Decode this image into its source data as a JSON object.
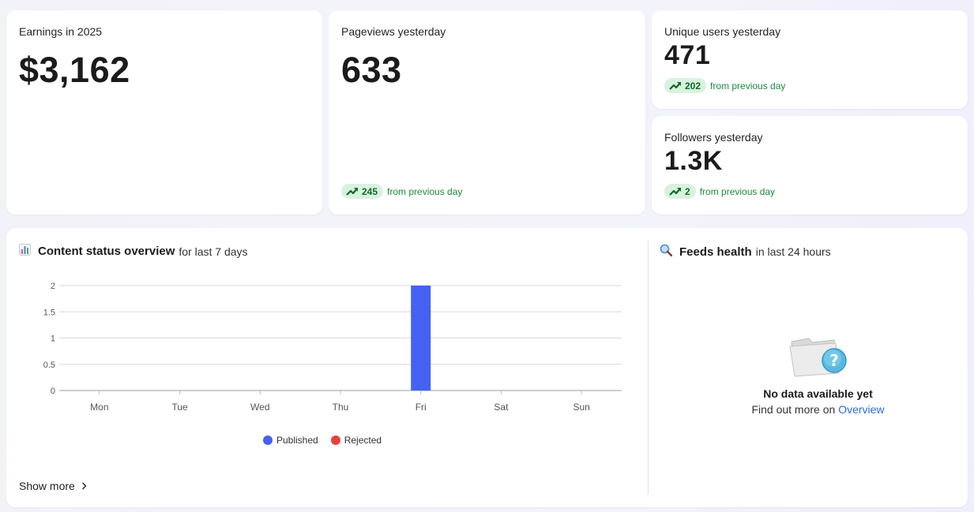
{
  "kpis": {
    "earnings": {
      "label": "Earnings in 2025",
      "value": "$3,162"
    },
    "pageviews": {
      "label": "Pageviews yesterday",
      "value": "633",
      "delta": "245",
      "delta_text": "from previous day"
    },
    "unique_users": {
      "label": "Unique users yesterday",
      "value": "471",
      "delta": "202",
      "delta_text": "from previous day"
    },
    "followers": {
      "label": "Followers yesterday",
      "value": "1.3K",
      "delta": "2",
      "delta_text": "from previous day"
    }
  },
  "content_status": {
    "title": "Content status overview",
    "subtitle": "for last 7 days",
    "icon": "bar-chart-icon",
    "show_more": "Show more"
  },
  "feeds_health": {
    "title": "Feeds health",
    "subtitle": "in last 24 hours",
    "icon": "magnifier-icon",
    "empty_title": "No data available yet",
    "empty_text": "Find out more on",
    "empty_link": "Overview"
  },
  "colors": {
    "published": "#4461f2",
    "rejected": "#ea4040",
    "trend_bg": "#d9f2df",
    "trend_text": "#1f8a3f"
  },
  "chart_data": {
    "type": "bar",
    "categories": [
      "Mon",
      "Tue",
      "Wed",
      "Thu",
      "Fri",
      "Sat",
      "Sun"
    ],
    "series": [
      {
        "name": "Published",
        "values": [
          0,
          0,
          0,
          0,
          2,
          0,
          0
        ]
      },
      {
        "name": "Rejected",
        "values": [
          0,
          0,
          0,
          0,
          0,
          0,
          0
        ]
      }
    ],
    "y_ticks": [
      "0",
      "0.5",
      "1",
      "1.5",
      "2"
    ],
    "ylim": [
      0,
      2
    ],
    "grid": true,
    "legend": "bottom"
  }
}
